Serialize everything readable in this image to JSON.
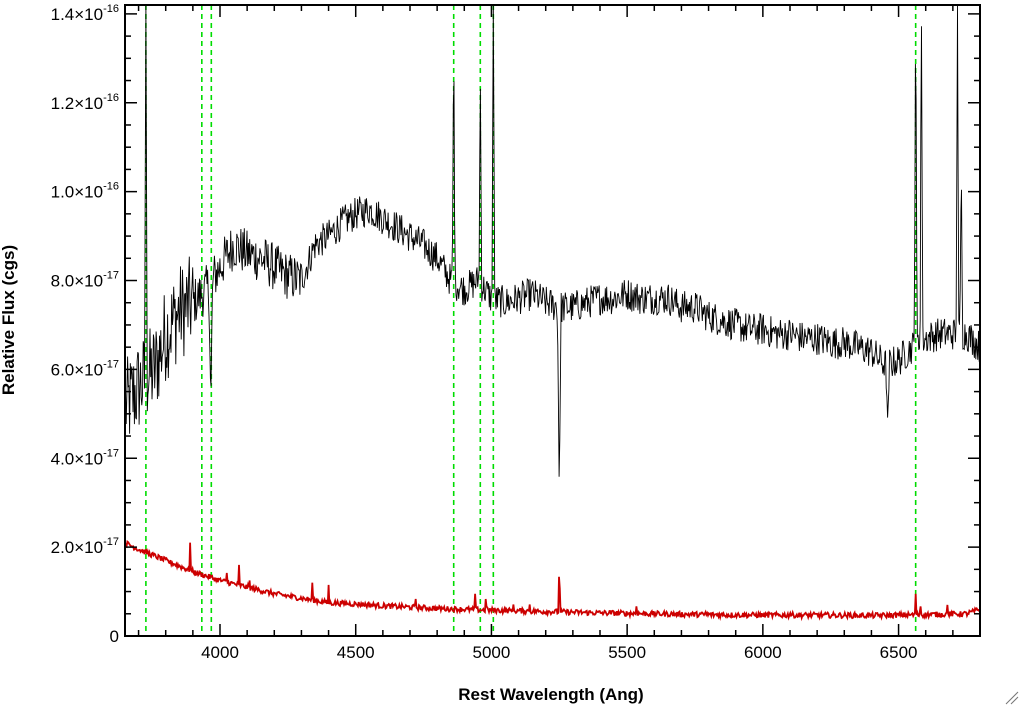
{
  "chart_data": {
    "type": "line",
    "xlabel": "Rest Wavelength (Ang)",
    "ylabel": "Relative Flux (cgs)",
    "xlim": [
      3650,
      6800
    ],
    "ylim": [
      0,
      1.42e-16
    ],
    "x_ticks": [
      {
        "value": 4000,
        "label": "4000"
      },
      {
        "value": 4500,
        "label": "4500"
      },
      {
        "value": 5000,
        "label": "5000"
      },
      {
        "value": 5500,
        "label": "5500"
      },
      {
        "value": 6000,
        "label": "6000"
      },
      {
        "value": 6500,
        "label": "6500"
      }
    ],
    "y_ticks": [
      {
        "value": 0,
        "mant": "0",
        "exp": ""
      },
      {
        "value": 2e-17,
        "mant": "2.0×10",
        "exp": "-17"
      },
      {
        "value": 4e-17,
        "mant": "4.0×10",
        "exp": "-17"
      },
      {
        "value": 6e-17,
        "mant": "6.0×10",
        "exp": "-17"
      },
      {
        "value": 8e-17,
        "mant": "8.0×10",
        "exp": "-17"
      },
      {
        "value": 1e-16,
        "mant": "1.0×10",
        "exp": "-16"
      },
      {
        "value": 1.2e-16,
        "mant": "1.2×10",
        "exp": "-16"
      },
      {
        "value": 1.4e-16,
        "mant": "1.4×10",
        "exp": "-16"
      }
    ],
    "colors": {
      "spectrum": "#000000",
      "error": "#cc0000",
      "lines": "#00dd00"
    },
    "emission_line_markers": [
      3727,
      3933,
      3968,
      4861,
      4959,
      5007,
      6563
    ],
    "series": [
      {
        "style": "noisy-spectrum",
        "color": "#000000",
        "x": [
          3660,
          3700,
          3730,
          3760,
          3800,
          3850,
          3900,
          3950,
          4000,
          4050,
          4100,
          4150,
          4200,
          4250,
          4300,
          4350,
          4400,
          4450,
          4500,
          4550,
          4600,
          4650,
          4700,
          4750,
          4800,
          4850,
          4900,
          4950,
          5000,
          5050,
          5100,
          5150,
          5200,
          5250,
          5300,
          5350,
          5400,
          5450,
          5500,
          5550,
          5600,
          5650,
          5700,
          5750,
          5800,
          5850,
          5900,
          5950,
          6000,
          6050,
          6100,
          6150,
          6200,
          6250,
          6300,
          6350,
          6400,
          6450,
          6500,
          6550,
          6600,
          6650,
          6700,
          6750,
          6800
        ],
        "y": [
          5.2e-17,
          5.6e-17,
          5.8e-17,
          6e-17,
          6.8e-17,
          7.3e-17,
          7.5e-17,
          7.8e-17,
          8.3e-17,
          8.8e-17,
          8.6e-17,
          8.5e-17,
          8.3e-17,
          8.1e-17,
          8e-17,
          8.8e-17,
          9e-17,
          9.3e-17,
          9.5e-17,
          9.6e-17,
          9.4e-17,
          9.2e-17,
          9e-17,
          8.8e-17,
          8.5e-17,
          8e-17,
          7.8e-17,
          8e-17,
          7.6e-17,
          7.5e-17,
          7.6e-17,
          7.7e-17,
          7.5e-17,
          7.4e-17,
          7.4e-17,
          7.5e-17,
          7.6e-17,
          7.6e-17,
          7.7e-17,
          7.6e-17,
          7.6e-17,
          7.6e-17,
          7.4e-17,
          7.4e-17,
          7.2e-17,
          7.1e-17,
          7e-17,
          6.9e-17,
          6.9e-17,
          6.8e-17,
          6.8e-17,
          6.7e-17,
          6.7e-17,
          6.6e-17,
          6.6e-17,
          6.5e-17,
          6.4e-17,
          6.1e-17,
          6.2e-17,
          6.5e-17,
          6.7e-17,
          6.8e-17,
          6.8e-17,
          6.8e-17,
          6.5e-17
        ],
        "emission_lines": [
          {
            "x": 3727,
            "peak": 1.45e-16
          },
          {
            "x": 4861,
            "peak": 1.36e-16
          },
          {
            "x": 4959,
            "peak": 1.28e-16
          },
          {
            "x": 5007,
            "peak": 1.45e-16
          },
          {
            "x": 6563,
            "peak": 1.45e-16
          },
          {
            "x": 6584,
            "peak": 1.45e-16
          },
          {
            "x": 6717,
            "peak": 1.42e-16
          },
          {
            "x": 6731,
            "peak": 1.08e-16
          }
        ],
        "absorption_lines": [
          {
            "x": 5250,
            "dip": 3.3e-17
          },
          {
            "x": 6460,
            "dip": 4.8e-17
          },
          {
            "x": 3966,
            "dip": 5.2e-17
          }
        ]
      },
      {
        "style": "error-spectrum",
        "color": "#cc0000",
        "x": [
          3650,
          3700,
          3800,
          3900,
          4000,
          4100,
          4200,
          4300,
          4400,
          4500,
          4600,
          4800,
          5000,
          5200,
          5400,
          5600,
          5800,
          6000,
          6200,
          6400,
          6600,
          6750,
          6800
        ],
        "y": [
          2.1e-17,
          1.95e-17,
          1.7e-17,
          1.45e-17,
          1.25e-17,
          1.1e-17,
          9.5e-18,
          8.5e-18,
          7.5e-18,
          7.2e-18,
          6.8e-18,
          6.2e-18,
          5.8e-18,
          5.5e-18,
          5.2e-18,
          5e-18,
          4.8e-18,
          4.7e-18,
          4.7e-18,
          4.6e-18,
          4.8e-18,
          5e-18,
          6e-18
        ],
        "spikes": [
          {
            "x": 3727,
            "height": 2e-17
          },
          {
            "x": 3890,
            "height": 2.1e-17
          },
          {
            "x": 4026,
            "height": 1.7e-17
          },
          {
            "x": 4070,
            "height": 1.6e-17
          },
          {
            "x": 4110,
            "height": 1.5e-17
          },
          {
            "x": 4340,
            "height": 1.2e-17
          },
          {
            "x": 4400,
            "height": 1.15e-17
          },
          {
            "x": 4720,
            "height": 1e-17
          },
          {
            "x": 4940,
            "height": 9.5e-18
          },
          {
            "x": 4980,
            "height": 1e-17
          },
          {
            "x": 5080,
            "height": 8.5e-18
          },
          {
            "x": 5140,
            "height": 8.5e-18
          },
          {
            "x": 5250,
            "height": 1.6e-17
          },
          {
            "x": 5535,
            "height": 8e-18
          },
          {
            "x": 5790,
            "height": 6.5e-18
          },
          {
            "x": 6100,
            "height": 6.2e-18
          },
          {
            "x": 6563,
            "height": 9.5e-18
          },
          {
            "x": 6580,
            "height": 8e-18
          },
          {
            "x": 6680,
            "height": 7e-18
          }
        ]
      }
    ]
  }
}
